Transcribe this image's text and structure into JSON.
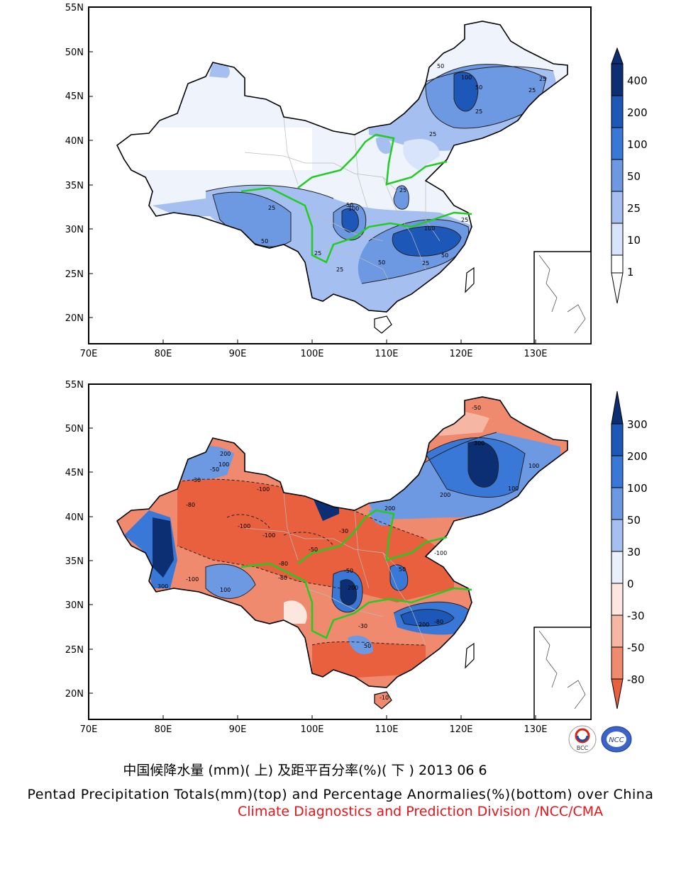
{
  "top_map": {
    "lat_labels": [
      "55N",
      "50N",
      "45N",
      "40N",
      "35N",
      "30N",
      "25N",
      "20N"
    ],
    "lon_labels": [
      "70E",
      "80E",
      "90E",
      "100E",
      "110E",
      "120E",
      "130E"
    ],
    "contour_labels": [
      "50",
      "100",
      "50",
      "25",
      "25",
      "25",
      "25",
      "50",
      "100",
      "25",
      "25",
      "25",
      "50",
      "100",
      "25",
      "50",
      "50",
      "25",
      "25",
      "25",
      "50",
      "25",
      "25",
      "50"
    ],
    "colorbar": {
      "levels": [
        "400",
        "200",
        "100",
        "50",
        "25",
        "10",
        "1"
      ],
      "colors": [
        "#0c2f73",
        "#1d58b8",
        "#3a78d8",
        "#6d98e2",
        "#a4bff0",
        "#d7e4fa",
        "#ffffff"
      ]
    }
  },
  "bottom_map": {
    "lat_labels": [
      "55N",
      "50N",
      "45N",
      "40N",
      "35N",
      "30N",
      "25N",
      "20N"
    ],
    "lon_labels": [
      "70E",
      "80E",
      "90E",
      "100E",
      "110E",
      "120E",
      "130E"
    ],
    "contour_labels": [
      "200",
      "100",
      "-50",
      "-30",
      "300",
      "-100",
      "-80",
      "100",
      "-100",
      "-100",
      "-50",
      "-80",
      "200",
      "-100",
      "50",
      "200",
      "100",
      "-30",
      "-50",
      "-80",
      "-100",
      "200",
      "100",
      "-50",
      "-30",
      "50",
      "-10",
      "-80",
      "300",
      "200"
    ],
    "colorbar": {
      "levels": [
        "300",
        "200",
        "100",
        "50",
        "30",
        "0",
        "-30",
        "-50",
        "-80"
      ],
      "colors": [
        "#0c2f73",
        "#1d58b8",
        "#3a78d8",
        "#6d98e2",
        "#a4bff0",
        "#e9f0fb",
        "#fbe6e0",
        "#f5b6a4",
        "#ef8a6e",
        "#e9603e"
      ]
    }
  },
  "caption_zh": "中国候降水量 (mm)( 上) 及距平百分率(%)( 下 ) 2013 06 6",
  "caption_en": "Pentad Precipitation Totals(mm)(top) and Percentage Anormalies(%)(bottom) over China",
  "caption_org": "Climate Diagnostics and Prediction Division /NCC/CMA",
  "logos": [
    "BCC",
    "NCC"
  ],
  "colors": {
    "boundary_green": "#22cc22",
    "caption_org": "#e8141a"
  }
}
